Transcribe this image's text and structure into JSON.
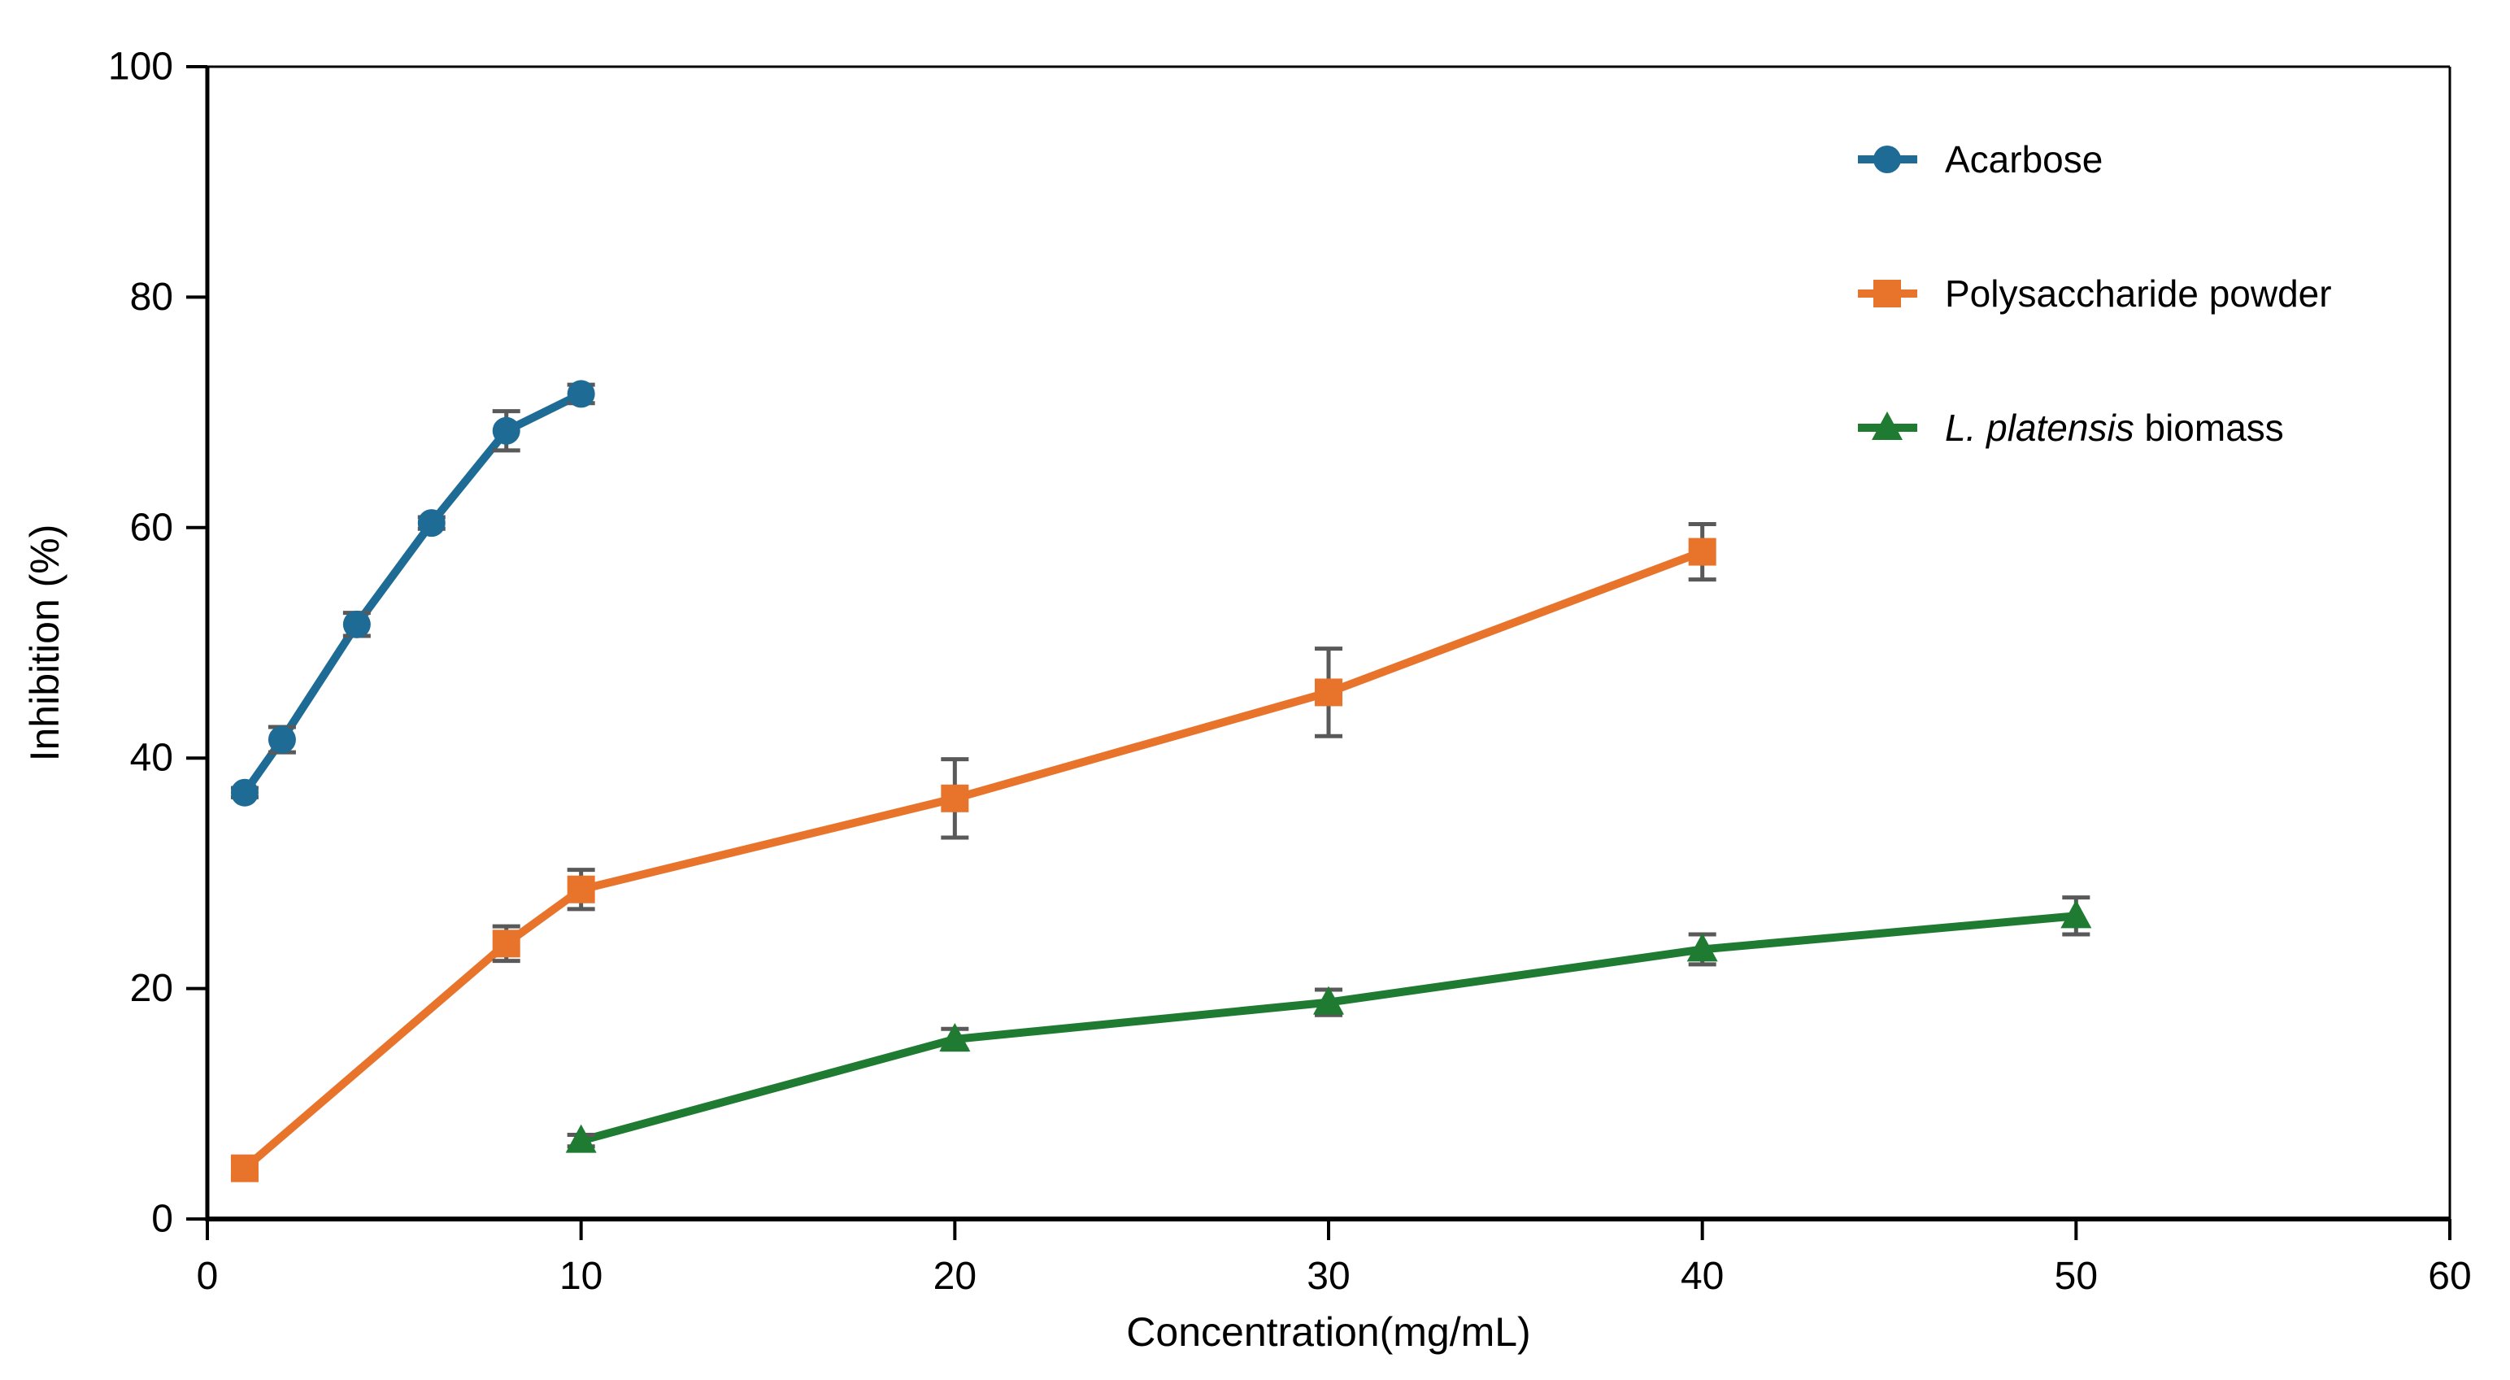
{
  "page": {
    "background": "#ffffff"
  },
  "chart_data": {
    "type": "line",
    "title": "",
    "xlabel": "Concentration(mg/mL)",
    "ylabel": "Inhibition (%)",
    "xlim": [
      0,
      60
    ],
    "ylim": [
      0,
      100
    ],
    "xticks": [
      0,
      10,
      20,
      30,
      40,
      50,
      60
    ],
    "yticks": [
      0,
      20,
      40,
      60,
      80,
      100
    ],
    "grid": false,
    "legend_position": "upper-right-inside",
    "axis_color": "#000000",
    "error_bar_color": "#595959",
    "series": [
      {
        "name": "Acarbose",
        "label_parts": [
          {
            "text": "Acarbose",
            "italic": false
          }
        ],
        "color": "#1e6b96",
        "marker": "circle",
        "x": [
          1,
          2,
          4,
          6,
          8,
          10
        ],
        "y": [
          37.0,
          41.6,
          51.6,
          60.4,
          68.4,
          71.6
        ],
        "yerr": [
          0.4,
          1.1,
          1.0,
          0.5,
          1.7,
          0.8
        ]
      },
      {
        "name": "Polysaccharide powder",
        "label_parts": [
          {
            "text": "Polysaccharide powder",
            "italic": false
          }
        ],
        "color": "#e8742c",
        "marker": "square",
        "x": [
          1,
          8,
          10,
          20,
          30,
          40
        ],
        "y": [
          4.4,
          23.9,
          28.6,
          36.5,
          45.7,
          57.9
        ],
        "yerr": [
          0.8,
          1.5,
          1.7,
          3.4,
          3.8,
          2.4
        ]
      },
      {
        "name": "L. platensis biomass",
        "label_parts": [
          {
            "text": "L. platensis",
            "italic": true
          },
          {
            "text": " biomass",
            "italic": false
          }
        ],
        "color": "#1e7b31",
        "marker": "triangle",
        "x": [
          10,
          20,
          30,
          40,
          50
        ],
        "y": [
          6.8,
          15.6,
          18.8,
          23.4,
          26.3
        ],
        "yerr": [
          0.5,
          0.9,
          1.1,
          1.3,
          1.6
        ]
      }
    ]
  }
}
